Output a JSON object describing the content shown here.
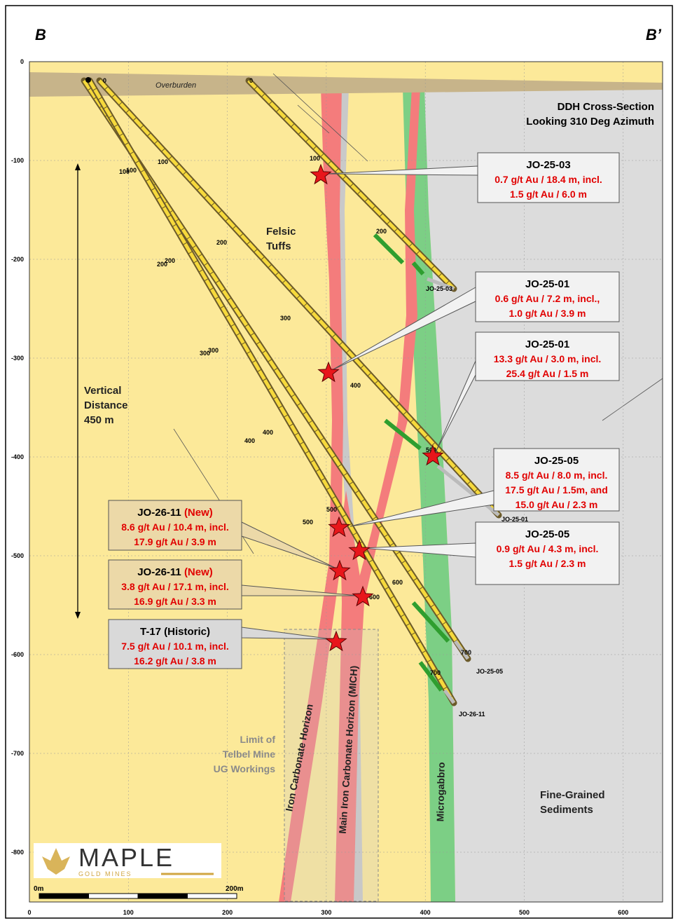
{
  "section_labels": {
    "left": "B",
    "right": "B’"
  },
  "title": [
    "DDH Cross-Section",
    "Looking 310 Deg Azimuth"
  ],
  "axes": {
    "x_ticks": [
      0,
      100,
      200,
      300,
      400,
      500,
      600
    ],
    "y_ticks": [
      0,
      -100,
      -200,
      -300,
      -400,
      -500,
      -600,
      -700,
      -800
    ]
  },
  "units": [
    {
      "name": "overburden",
      "lines": [
        "Overburden"
      ]
    },
    {
      "name": "felsic-tuffs",
      "lines": [
        "Felsic",
        "Tuffs"
      ]
    },
    {
      "name": "vertical-distance",
      "lines": [
        "Vertical",
        "Distance",
        "450 m"
      ]
    },
    {
      "name": "telbel-limit",
      "lines": [
        "Limit of",
        "Telbel Mine",
        "UG Workings"
      ]
    },
    {
      "name": "sediments",
      "lines": [
        "Fine-Grained",
        "Sediments"
      ]
    },
    {
      "name": "iron-carbonate",
      "lines": [
        "Iron Carbonate Horizon"
      ]
    },
    {
      "name": "mich",
      "lines": [
        "Main Iron Carbonate Horizon (MICH)"
      ]
    },
    {
      "name": "microgabbro",
      "lines": [
        "Microgabbro"
      ]
    }
  ],
  "callouts": [
    {
      "title": "JO-25-03",
      "lines": [
        "0.7 g/t Au / 18.4 m, incl.",
        "1.5 g/t Au / 6.0 m"
      ]
    },
    {
      "title": "JO-25-01",
      "lines": [
        "0.6 g/t Au / 7.2 m, incl.,",
        "1.0 g/t Au / 3.9 m"
      ]
    },
    {
      "title": "JO-25-01",
      "lines": [
        "13.3 g/t Au / 3.0 m, incl.",
        "25.4 g/t Au / 1.5 m"
      ]
    },
    {
      "title": "JO-25-05",
      "lines": [
        "8.5 g/t Au / 8.0 m, incl.",
        "17.5 g/t Au / 1.5m, and",
        "15.0 g/t Au / 2.3 m"
      ]
    },
    {
      "title": "JO-25-05",
      "lines": [
        "0.9 g/t Au / 4.3 m, incl.",
        "1.5 g/t Au / 2.3 m"
      ]
    },
    {
      "title": "JO-26-11",
      "tag": "(New)",
      "lines": [
        "8.6 g/t Au / 10.4 m, incl.",
        "17.9 g/t Au / 3.9 m"
      ]
    },
    {
      "title": "JO-26-11",
      "tag": "(New)",
      "lines": [
        "3.8 g/t Au / 17.1 m, incl.",
        "16.9 g/t Au / 3.3 m"
      ]
    },
    {
      "title": "T-17 (Historic)",
      "lines": [
        "7.5 g/t Au / 10.1 m, incl.",
        "16.2 g/t Au / 3.8 m"
      ]
    }
  ],
  "drillholes": [
    "JO-25-03",
    "JO-25-01",
    "JO-25-05",
    "JO-26-11"
  ],
  "depth_labels": [
    "0",
    "0",
    "100",
    "100",
    "100",
    "100",
    "200",
    "200",
    "200",
    "200",
    "300",
    "300",
    "300",
    "400",
    "400",
    "400",
    "500",
    "500",
    "500",
    "600",
    "600",
    "700",
    "700"
  ],
  "scale_bar": {
    "start": "0m",
    "end": "200m"
  },
  "logo": {
    "name": "MAPLE",
    "sub": "GOLD MINES"
  }
}
